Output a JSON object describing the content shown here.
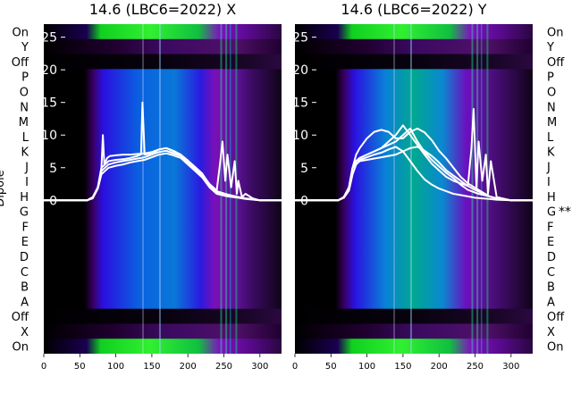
{
  "chart_data": [
    {
      "type": "heatmap",
      "title": "14.6 (LBC6=2022) X",
      "ylabel": "Dipole",
      "x_ticks": [
        0,
        50,
        100,
        150,
        200,
        250,
        300
      ],
      "xlim": [
        0,
        330
      ],
      "y_ticks": [
        0,
        5,
        10,
        15,
        20,
        25
      ],
      "ylim": [
        -23.5,
        27
      ],
      "row_labels": [
        "On",
        "Y",
        "Off",
        "P",
        "O",
        "N",
        "M",
        "L",
        "K",
        "J",
        "I",
        "H",
        "G",
        "F",
        "E",
        "D",
        "C",
        "B",
        "A",
        "Off",
        "X",
        "On"
      ],
      "marked_row": null,
      "series": [
        {
          "x": [
            0,
            60,
            68,
            75,
            80,
            85,
            90,
            100,
            110,
            120,
            130,
            135,
            137,
            140,
            150,
            160,
            170,
            180,
            190,
            200,
            210,
            220,
            230,
            240,
            245,
            248,
            252,
            255,
            260,
            265,
            268,
            270,
            275,
            280,
            290,
            300,
            330
          ],
          "y": [
            0,
            0,
            0.5,
            2,
            5,
            5.5,
            6,
            6.2,
            6.3,
            6.5,
            6.8,
            7,
            15,
            7,
            7.2,
            7.8,
            8,
            7.5,
            7,
            6,
            5,
            4,
            2.5,
            1.5,
            6,
            9,
            3,
            7,
            2,
            6,
            1,
            3,
            0.5,
            1,
            0.3,
            0,
            0
          ]
        },
        {
          "x": [
            0,
            60,
            68,
            75,
            80,
            85,
            90,
            100,
            110,
            120,
            130,
            140,
            150,
            160,
            170,
            180,
            190,
            200,
            210,
            220,
            230,
            240,
            255,
            270,
            280,
            300,
            330
          ],
          "y": [
            0,
            0,
            0.4,
            2,
            4.5,
            5,
            5.5,
            5.8,
            6,
            6.2,
            6.4,
            6.6,
            7,
            7.4,
            7.6,
            7.2,
            6.8,
            5.8,
            4.8,
            3.8,
            2.2,
            1.2,
            0.8,
            0.5,
            0.3,
            0,
            0
          ]
        },
        {
          "x": [
            0,
            60,
            68,
            75,
            80,
            85,
            90,
            100,
            110,
            120,
            130,
            140,
            150,
            160,
            170,
            180,
            190,
            200,
            210,
            220,
            230,
            240,
            255,
            270,
            280,
            300,
            330
          ],
          "y": [
            0,
            0,
            0.3,
            1.8,
            4,
            4.5,
            5,
            5.3,
            5.5,
            5.8,
            6,
            6.2,
            6.6,
            7,
            7.2,
            6.9,
            6.5,
            5.5,
            4.5,
            3.5,
            2,
            1,
            0.6,
            0.4,
            0.2,
            0,
            0
          ]
        },
        {
          "x": [
            0,
            60,
            68,
            75,
            80,
            82,
            84,
            88,
            92,
            100,
            110,
            120,
            130,
            140,
            150,
            160,
            170,
            180,
            190,
            200,
            210,
            220,
            230,
            240,
            255,
            270,
            280,
            300,
            330
          ],
          "y": [
            0,
            0,
            0.4,
            2,
            5,
            10,
            5.5,
            6.5,
            6.8,
            6.9,
            7,
            7,
            7.1,
            7.2,
            7.4,
            7.8,
            8,
            7.6,
            7,
            6.1,
            5.1,
            4.1,
            2.4,
            1.4,
            0.9,
            0.5,
            0.3,
            0,
            0
          ]
        }
      ]
    },
    {
      "type": "heatmap",
      "title": "14.6 (LBC6=2022) Y",
      "ylabel": "",
      "x_ticks": [
        0,
        50,
        100,
        150,
        200,
        250,
        300
      ],
      "xlim": [
        0,
        330
      ],
      "y_ticks": [
        0,
        5,
        10,
        15,
        20,
        25
      ],
      "ylim": [
        -23.5,
        27
      ],
      "row_labels": [
        "On",
        "Y",
        "Off",
        "P",
        "O",
        "N",
        "M",
        "L",
        "K",
        "J",
        "I",
        "H",
        "G",
        "F",
        "E",
        "D",
        "C",
        "B",
        "A",
        "Off",
        "X",
        "On"
      ],
      "marked_row": "G",
      "marked_suffix": "**",
      "series": [
        {
          "x": [
            0,
            60,
            68,
            75,
            80,
            90,
            100,
            110,
            120,
            130,
            140,
            150,
            160,
            170,
            180,
            190,
            200,
            210,
            220,
            230,
            240,
            245,
            248,
            252,
            255,
            260,
            265,
            268,
            272,
            280,
            300,
            330
          ],
          "y": [
            0,
            0,
            0.5,
            2,
            5,
            6,
            6.2,
            6.4,
            6.6,
            6.8,
            7,
            7.5,
            8,
            8.2,
            7.6,
            6.8,
            5.8,
            4.6,
            3.8,
            3,
            2.2,
            8,
            14,
            2,
            9,
            3,
            7,
            1,
            6,
            0.5,
            0,
            0
          ]
        },
        {
          "x": [
            0,
            60,
            68,
            75,
            80,
            85,
            90,
            100,
            110,
            120,
            130,
            140,
            150,
            160,
            170,
            180,
            190,
            200,
            210,
            220,
            230,
            240,
            255,
            270,
            280,
            300,
            330
          ],
          "y": [
            0,
            0,
            0.5,
            2,
            5,
            7,
            8,
            9.5,
            10.5,
            10.8,
            10.5,
            9.5,
            9.5,
            10.5,
            11,
            10.4,
            9.2,
            7.6,
            6.4,
            5,
            3.6,
            2.6,
            1.6,
            0.6,
            0.3,
            0,
            0
          ]
        },
        {
          "x": [
            0,
            60,
            68,
            75,
            80,
            85,
            90,
            100,
            110,
            120,
            130,
            140,
            150,
            160,
            170,
            180,
            190,
            200,
            210,
            220,
            230,
            240,
            250,
            260,
            270,
            280,
            300,
            330
          ],
          "y": [
            0,
            0,
            0.5,
            2,
            5,
            6,
            6.5,
            7,
            7.5,
            8,
            9,
            10,
            11.5,
            10,
            8.5,
            7,
            5.6,
            4.6,
            3.6,
            3,
            2.6,
            2.2,
            1.6,
            1.1,
            0.6,
            0.3,
            0,
            0
          ]
        },
        {
          "x": [
            0,
            60,
            68,
            75,
            80,
            85,
            90,
            100,
            110,
            120,
            130,
            140,
            150,
            155,
            160,
            170,
            180,
            190,
            200,
            210,
            220,
            230,
            240,
            255,
            270,
            280,
            300,
            330
          ],
          "y": [
            0,
            0,
            0.5,
            2,
            5,
            6,
            6.5,
            7,
            7.5,
            8,
            8.5,
            9,
            10,
            10.5,
            11,
            9,
            7.4,
            6.2,
            5.2,
            4.2,
            3.4,
            2.4,
            1.6,
            1,
            0.6,
            0.3,
            0,
            0
          ]
        },
        {
          "x": [
            0,
            60,
            68,
            75,
            80,
            85,
            90,
            100,
            110,
            120,
            130,
            140,
            150,
            160,
            170,
            180,
            190,
            200,
            210,
            220,
            230,
            240,
            250,
            260,
            270,
            280,
            300,
            330
          ],
          "y": [
            0,
            0,
            0.4,
            1.5,
            4,
            5.5,
            6.2,
            6.6,
            7,
            7.3,
            7.8,
            8.2,
            7.5,
            6,
            4.5,
            3.2,
            2.4,
            1.8,
            1.4,
            1,
            0.8,
            0.6,
            0.4,
            0.3,
            0.2,
            0.1,
            0,
            0
          ]
        }
      ]
    }
  ]
}
